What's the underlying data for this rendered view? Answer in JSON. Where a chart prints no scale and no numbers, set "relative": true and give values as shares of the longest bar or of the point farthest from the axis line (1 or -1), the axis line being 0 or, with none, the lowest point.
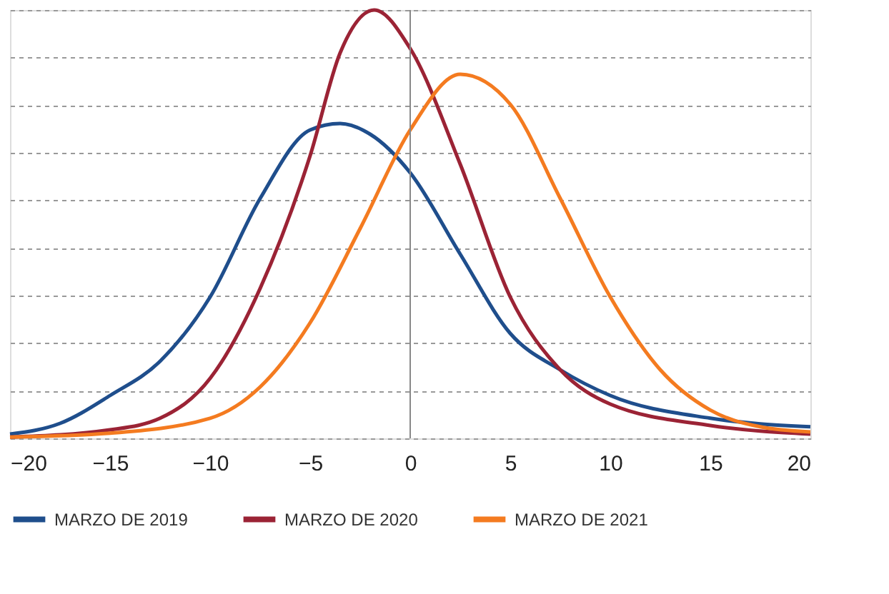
{
  "chart_data": {
    "type": "line",
    "relative": true,
    "grid": "y",
    "legend": "bottom",
    "line_style": "solid",
    "marker": "none",
    "xlim": [
      -20,
      20
    ],
    "xticks": [
      -20,
      -15,
      -10,
      -5,
      0,
      5,
      10,
      15,
      20
    ],
    "ref_lines": [
      {
        "axis": "x",
        "value": 0,
        "color": "#888888"
      }
    ],
    "series": [
      {
        "name": "MARZO DE 2019",
        "color": "#1f4e8c",
        "x": [
          -20,
          -17.5,
          -15,
          -12.5,
          -10,
          -7.5,
          -5,
          -3.5,
          -2,
          0,
          2.5,
          5,
          7.5,
          10,
          15,
          20
        ],
        "values": [
          0.01,
          0.035,
          0.1,
          0.18,
          0.33,
          0.56,
          0.72,
          0.735,
          0.71,
          0.62,
          0.43,
          0.245,
          0.16,
          0.1,
          0.047,
          0.027
        ]
      },
      {
        "name": "MARZO DE 2020",
        "color": "#9b2335",
        "x": [
          -20,
          -15,
          -12.5,
          -10,
          -7.5,
          -5,
          -3.5,
          -1.8,
          0,
          2.5,
          5,
          7.5,
          10,
          15,
          20
        ],
        "values": [
          0.003,
          0.02,
          0.047,
          0.14,
          0.35,
          0.66,
          0.9,
          1,
          0.91,
          0.64,
          0.33,
          0.16,
          0.08,
          0.03,
          0.01
        ]
      },
      {
        "name": "MARZO DE 2021",
        "color": "#f47b20",
        "x": [
          -20,
          -15,
          -10,
          -7.5,
          -5,
          -2.5,
          0,
          2.5,
          5,
          7.5,
          10,
          12.5,
          15,
          17.5,
          20
        ],
        "values": [
          0.003,
          0.012,
          0.047,
          0.12,
          0.27,
          0.49,
          0.72,
          0.85,
          0.78,
          0.56,
          0.33,
          0.16,
          0.066,
          0.027,
          0.015
        ]
      }
    ]
  }
}
